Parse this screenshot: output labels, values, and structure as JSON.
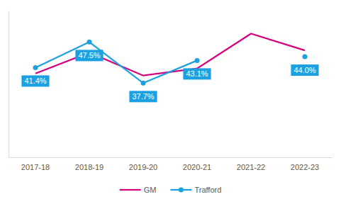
{
  "chart_data": {
    "type": "line",
    "categories": [
      "2017-18",
      "2018-19",
      "2019-20",
      "2020-21",
      "2021-22",
      "2022-23"
    ],
    "series": [
      {
        "name": "GM",
        "color": "#d4007f",
        "marker": "none",
        "line_style": "solid",
        "values": [
          40.0,
          45.0,
          39.5,
          41.2,
          49.5,
          45.5
        ]
      },
      {
        "name": "Trafford",
        "color": "#1ba1e2",
        "marker": "circle",
        "line_style": "solid",
        "data_labels": true,
        "values": [
          41.4,
          47.5,
          37.7,
          43.1,
          null,
          44.0
        ],
        "value_labels": [
          "41.4%",
          "47.5%",
          "37.7%",
          "43.1%",
          null,
          "44.0%"
        ]
      }
    ],
    "ylim": [
      20,
      55
    ],
    "grid": false,
    "legend": "bottom",
    "tick_labels": "x"
  }
}
